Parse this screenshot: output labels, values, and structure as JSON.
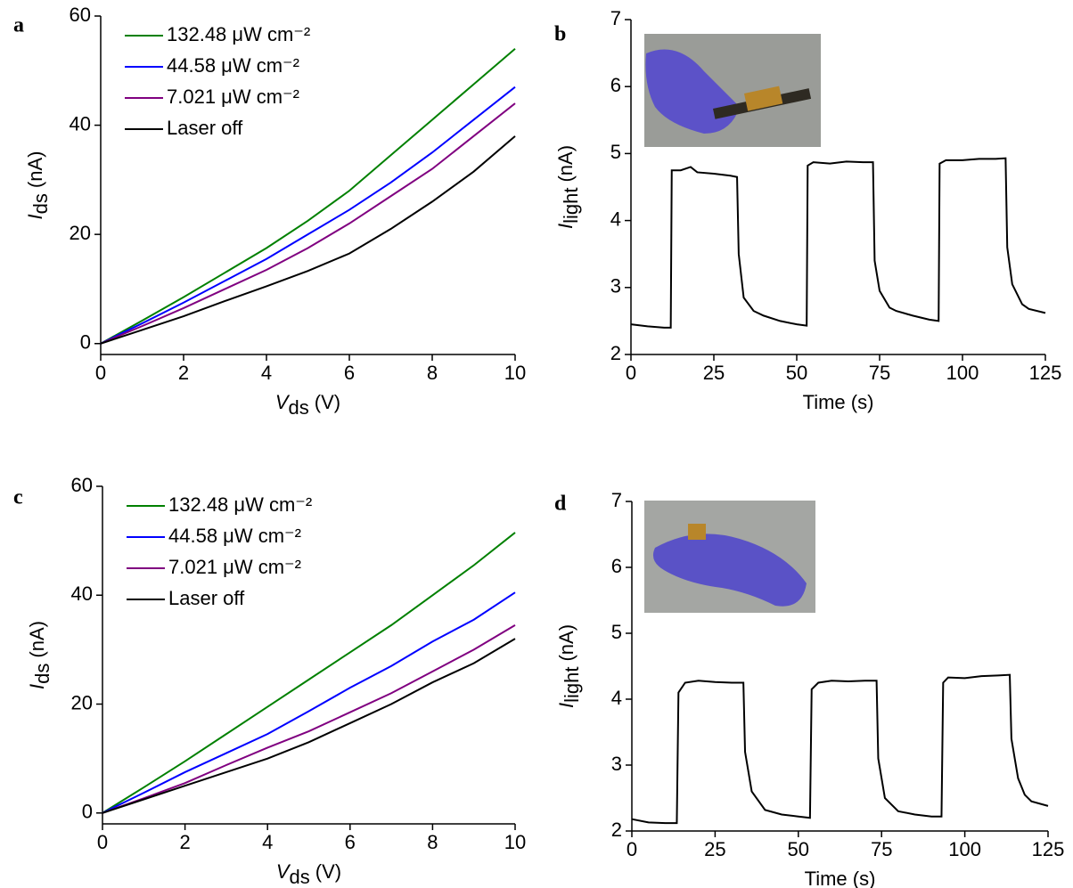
{
  "chart_data": [
    {
      "type": "line",
      "panel_label": "a",
      "x_label": {
        "main": "V",
        "sub": "ds",
        "unit": "(V)"
      },
      "y_label": {
        "main": "I",
        "sub": "ds",
        "unit": "(nA)"
      },
      "x": [
        0,
        1,
        2,
        3,
        4,
        5,
        6,
        7,
        8,
        9,
        10
      ],
      "series": [
        {
          "name": "132.48 μW cm⁻²",
          "color": "#008000",
          "values": [
            0,
            4.2,
            8.5,
            13,
            17.5,
            22.5,
            28,
            34.5,
            41,
            47.5,
            54
          ]
        },
        {
          "name": "44.58 μW cm⁻²",
          "color": "#0000ff",
          "values": [
            0,
            3.7,
            7.5,
            11.5,
            15.5,
            20,
            24.5,
            29.5,
            35,
            41,
            47
          ]
        },
        {
          "name": "7.021 μW cm⁻²",
          "color": "#800080",
          "values": [
            0,
            3.2,
            6.5,
            10,
            13.5,
            17.5,
            22,
            27,
            32,
            38,
            44
          ]
        },
        {
          "name": "Laser off",
          "color": "#000000",
          "values": [
            0,
            2.5,
            5,
            7.8,
            10.5,
            13.3,
            16.5,
            21,
            26,
            31.5,
            38
          ]
        }
      ],
      "xlim": [
        0,
        10
      ],
      "ylim": [
        -2,
        60
      ],
      "xticks": [
        0,
        2,
        4,
        6,
        8,
        10
      ],
      "yticks": [
        0,
        20,
        40,
        60
      ],
      "legend": "upper left"
    },
    {
      "type": "line",
      "panel_label": "b",
      "x_label": {
        "main": "Time (s)"
      },
      "y_label": {
        "main": "I",
        "sub": "light",
        "unit": "(nA)"
      },
      "x": [
        0,
        5,
        10,
        12,
        12.3,
        15,
        18,
        20,
        25,
        30,
        32,
        32.5,
        34,
        37,
        40,
        45,
        50,
        53,
        53.3,
        55,
        60,
        65,
        70,
        73,
        73.5,
        75,
        78,
        80,
        85,
        90,
        92.8,
        93.1,
        95,
        100,
        105,
        110,
        113,
        113.5,
        115,
        118,
        120,
        125
      ],
      "values": [
        2.45,
        2.42,
        2.4,
        2.4,
        4.75,
        4.75,
        4.8,
        4.72,
        4.7,
        4.67,
        4.65,
        3.5,
        2.85,
        2.65,
        2.58,
        2.5,
        2.45,
        2.43,
        4.82,
        4.87,
        4.85,
        4.88,
        4.87,
        4.87,
        3.4,
        2.95,
        2.7,
        2.65,
        2.58,
        2.52,
        2.5,
        4.85,
        4.9,
        4.9,
        4.92,
        4.92,
        4.93,
        3.6,
        3.05,
        2.75,
        2.68,
        2.62
      ],
      "color": "#000000",
      "xlim": [
        0,
        125
      ],
      "ylim": [
        2,
        7
      ],
      "xticks": [
        0,
        25,
        50,
        75,
        100,
        125
      ],
      "yticks": [
        2,
        3,
        4,
        5,
        6,
        7
      ]
    },
    {
      "type": "line",
      "panel_label": "c",
      "x_label": {
        "main": "V",
        "sub": "ds",
        "unit": "(V)"
      },
      "y_label": {
        "main": "I",
        "sub": "ds",
        "unit": "(nA)"
      },
      "x": [
        0,
        1,
        2,
        3,
        4,
        5,
        6,
        7,
        8,
        9,
        10
      ],
      "series": [
        {
          "name": "132.48 μW cm⁻²",
          "color": "#008000",
          "values": [
            0,
            4.7,
            9.5,
            14.5,
            19.5,
            24.5,
            29.5,
            34.5,
            40,
            45.5,
            51.5
          ]
        },
        {
          "name": "44.58 μW cm⁻²",
          "color": "#0000ff",
          "values": [
            0,
            3.7,
            7.5,
            11,
            14.5,
            18.7,
            23,
            27,
            31.5,
            35.5,
            40.5
          ]
        },
        {
          "name": "7.021 μW cm⁻²",
          "color": "#800080",
          "values": [
            0,
            2.7,
            5.5,
            8.8,
            12,
            15,
            18.5,
            22,
            26,
            30,
            34.5
          ]
        },
        {
          "name": "Laser off",
          "color": "#000000",
          "values": [
            0,
            2.5,
            5,
            7.5,
            10,
            13,
            16.5,
            20,
            24,
            27.5,
            32
          ]
        }
      ],
      "xlim": [
        0,
        10
      ],
      "ylim": [
        -2,
        60
      ],
      "xticks": [
        0,
        2,
        4,
        6,
        8,
        10
      ],
      "yticks": [
        0,
        20,
        40,
        60
      ],
      "legend": "upper left"
    },
    {
      "type": "line",
      "panel_label": "d",
      "x_label": {
        "main": "Time (s)"
      },
      "y_label": {
        "main": "I",
        "sub": "light",
        "unit": "(nA)"
      },
      "x": [
        0,
        5,
        10,
        13.5,
        14,
        16,
        20,
        25,
        30,
        33.5,
        34,
        36,
        40,
        45,
        50,
        53.5,
        54,
        56,
        60,
        65,
        70,
        73.5,
        74,
        76,
        80,
        85,
        90,
        93,
        93.5,
        95,
        100,
        105,
        110,
        113.5,
        114,
        116,
        118,
        120,
        125
      ],
      "values": [
        2.18,
        2.13,
        2.12,
        2.12,
        4.1,
        4.25,
        4.28,
        4.26,
        4.25,
        4.25,
        3.2,
        2.6,
        2.32,
        2.25,
        2.22,
        2.2,
        4.15,
        4.25,
        4.28,
        4.27,
        4.28,
        4.28,
        3.1,
        2.5,
        2.3,
        2.25,
        2.22,
        2.22,
        4.25,
        4.33,
        4.32,
        4.35,
        4.36,
        4.37,
        3.4,
        2.8,
        2.55,
        2.45,
        2.38
      ],
      "color": "#000000",
      "xlim": [
        0,
        125
      ],
      "ylim": [
        2,
        7
      ],
      "xticks": [
        0,
        25,
        50,
        75,
        100,
        125
      ],
      "yticks": [
        2,
        3,
        4,
        5,
        6,
        7
      ]
    }
  ]
}
